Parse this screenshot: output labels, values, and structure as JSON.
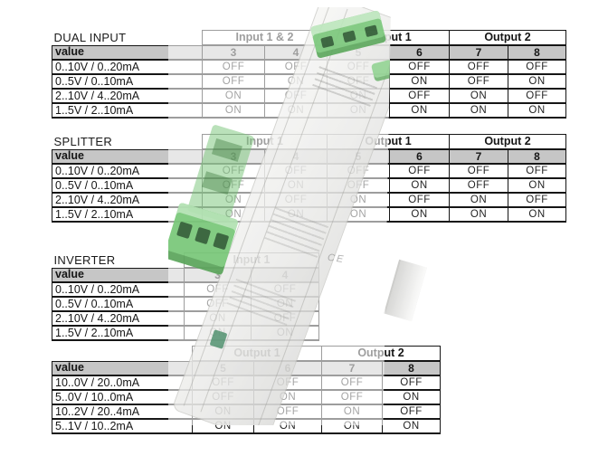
{
  "device": {
    "ce_mark": "CE"
  },
  "colors": {
    "table_border": "#161616",
    "header_row_bg": "#c6c6c6",
    "text": "#161616",
    "terminal_green": "#79c879",
    "terminal_hole_green": "#2f5d33",
    "device_body": "#e9e9e7"
  },
  "tables": [
    {
      "id": "dual-input",
      "title": "DUAL INPUT",
      "value_header": "value",
      "groups": [
        {
          "label": "Input 1 & 2",
          "span": 2
        },
        {
          "label": "Output 1",
          "span": 2
        },
        {
          "label": "Output 2",
          "span": 2
        }
      ],
      "switch_columns": [
        "3",
        "4",
        "5",
        "6",
        "7",
        "8"
      ],
      "rows": [
        {
          "label": "0..10V / 0..20mA",
          "values": [
            "OFF",
            "OFF",
            "OFF",
            "OFF",
            "OFF",
            "OFF"
          ]
        },
        {
          "label": "0..5V / 0..10mA",
          "values": [
            "OFF",
            "ON",
            "OFF",
            "ON",
            "OFF",
            "ON"
          ]
        },
        {
          "label": "2..10V / 4..20mA",
          "values": [
            "ON",
            "OFF",
            "ON",
            "OFF",
            "ON",
            "OFF"
          ]
        },
        {
          "label": "1..5V / 2..10mA",
          "values": [
            "ON",
            "ON",
            "ON",
            "ON",
            "ON",
            "ON"
          ]
        }
      ]
    },
    {
      "id": "splitter",
      "title": "SPLITTER",
      "value_header": "value",
      "groups": [
        {
          "label": "Input 1",
          "span": 2
        },
        {
          "label": "Output 1",
          "span": 2
        },
        {
          "label": "Output 2",
          "span": 2
        }
      ],
      "switch_columns": [
        "3",
        "4",
        "5",
        "6",
        "7",
        "8"
      ],
      "rows": [
        {
          "label": "0..10V / 0..20mA",
          "values": [
            "OFF",
            "OFF",
            "OFF",
            "OFF",
            "OFF",
            "OFF"
          ]
        },
        {
          "label": "0..5V / 0..10mA",
          "values": [
            "OFF",
            "ON",
            "OFF",
            "ON",
            "OFF",
            "ON"
          ]
        },
        {
          "label": "2..10V / 4..20mA",
          "values": [
            "ON",
            "OFF",
            "ON",
            "OFF",
            "ON",
            "OFF"
          ]
        },
        {
          "label": "1..5V / 2..10mA",
          "values": [
            "ON",
            "ON",
            "ON",
            "ON",
            "ON",
            "ON"
          ]
        }
      ]
    },
    {
      "id": "inverter",
      "title": "INVERTER",
      "value_header": "value",
      "groups": [
        {
          "label": "Input 1",
          "span": 2
        }
      ],
      "switch_columns": [
        "3",
        "4"
      ],
      "rows": [
        {
          "label": "0..10V / 0..20mA",
          "values": [
            "OFF",
            "OFF"
          ]
        },
        {
          "label": "0..5V / 0..10mA",
          "values": [
            "OFF",
            "ON"
          ]
        },
        {
          "label": "2..10V / 4..20mA",
          "values": [
            "ON",
            "OFF"
          ]
        },
        {
          "label": "1..5V / 2..10mA",
          "values": [
            "ON",
            "ON"
          ]
        }
      ]
    },
    {
      "id": "inverter-output",
      "title": "",
      "value_header": "value",
      "groups": [
        {
          "label": "Output 1",
          "span": 2
        },
        {
          "label": "Output 2",
          "span": 2
        }
      ],
      "switch_columns": [
        "5",
        "6",
        "7",
        "8"
      ],
      "rows": [
        {
          "label": "10..0V / 20..0mA",
          "values": [
            "OFF",
            "OFF",
            "OFF",
            "OFF"
          ]
        },
        {
          "label": "5..0V / 10..0mA",
          "values": [
            "OFF",
            "ON",
            "OFF",
            "ON"
          ]
        },
        {
          "label": "10..2V / 20..4mA",
          "values": [
            "ON",
            "OFF",
            "ON",
            "OFF"
          ]
        },
        {
          "label": "5..1V / 10..2mA",
          "values": [
            "ON",
            "ON",
            "ON",
            "ON"
          ]
        }
      ]
    }
  ]
}
